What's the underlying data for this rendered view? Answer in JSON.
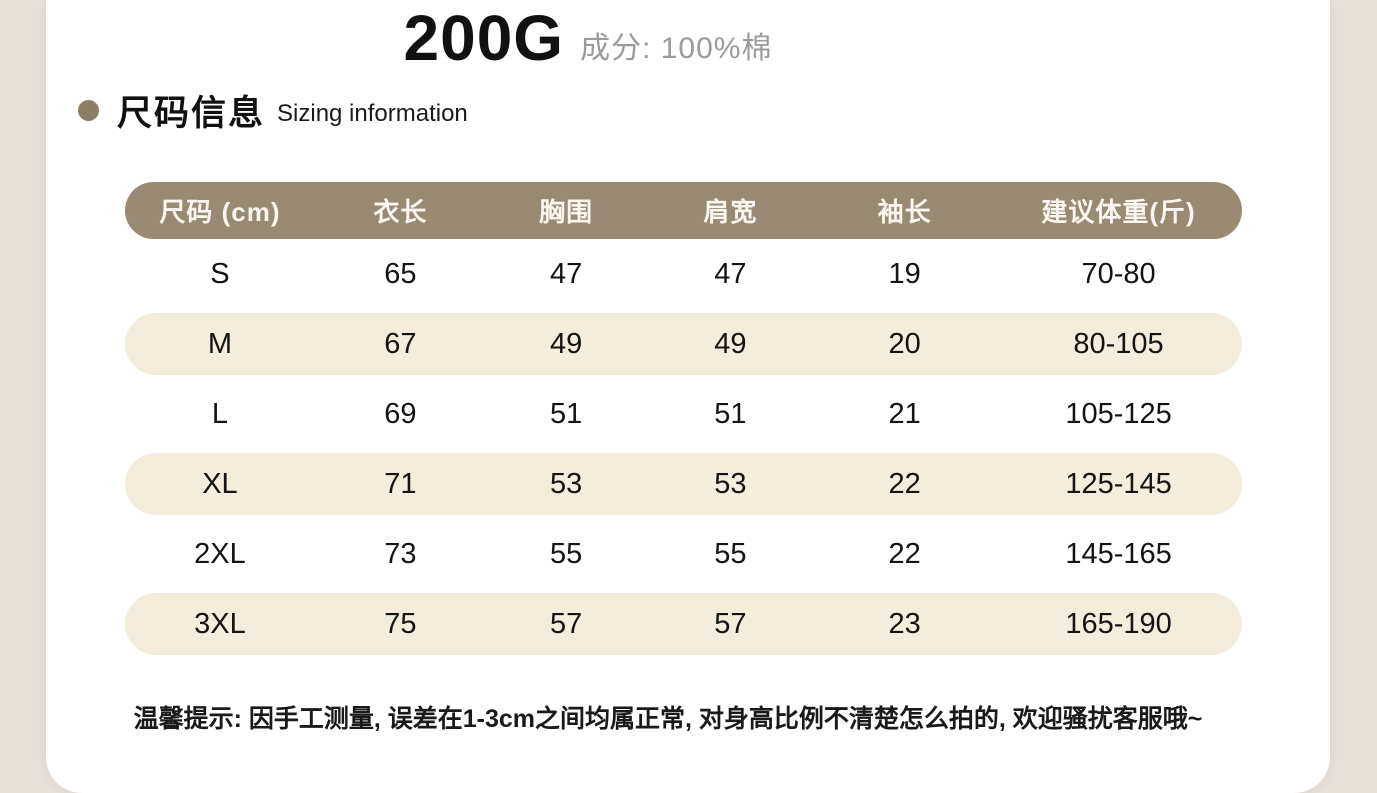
{
  "title": {
    "weight": "200G",
    "composition": "成分: 100%棉"
  },
  "section": {
    "zh": "尺码信息",
    "en": "Sizing information"
  },
  "table": {
    "headers": [
      "尺码 (cm)",
      "衣长",
      "胸围",
      "肩宽",
      "袖长",
      "建议体重(斤)"
    ],
    "rows": [
      {
        "size": "S",
        "length": "65",
        "bust": "47",
        "shoulder": "47",
        "sleeve": "19",
        "weight": "70-80"
      },
      {
        "size": "M",
        "length": "67",
        "bust": "49",
        "shoulder": "49",
        "sleeve": "20",
        "weight": "80-105"
      },
      {
        "size": "L",
        "length": "69",
        "bust": "51",
        "shoulder": "51",
        "sleeve": "21",
        "weight": "105-125"
      },
      {
        "size": "XL",
        "length": "71",
        "bust": "53",
        "shoulder": "53",
        "sleeve": "22",
        "weight": "125-145"
      },
      {
        "size": "2XL",
        "length": "73",
        "bust": "55",
        "shoulder": "55",
        "sleeve": "22",
        "weight": "145-165"
      },
      {
        "size": "3XL",
        "length": "75",
        "bust": "57",
        "shoulder": "57",
        "sleeve": "23",
        "weight": "165-190"
      }
    ]
  },
  "note": "温馨提示: 因手工测量, 误差在1-3cm之间均属正常, 对身高比例不清楚怎么拍的, 欢迎骚扰客服哦~",
  "colors": {
    "page_bg": "#e7e0d9",
    "card_bg": "#ffffff",
    "header_bg": "#998a74",
    "alt_row_bg": "#f4ecdc",
    "bullet": "#8b7e63",
    "muted_text": "#9b9b9b"
  }
}
